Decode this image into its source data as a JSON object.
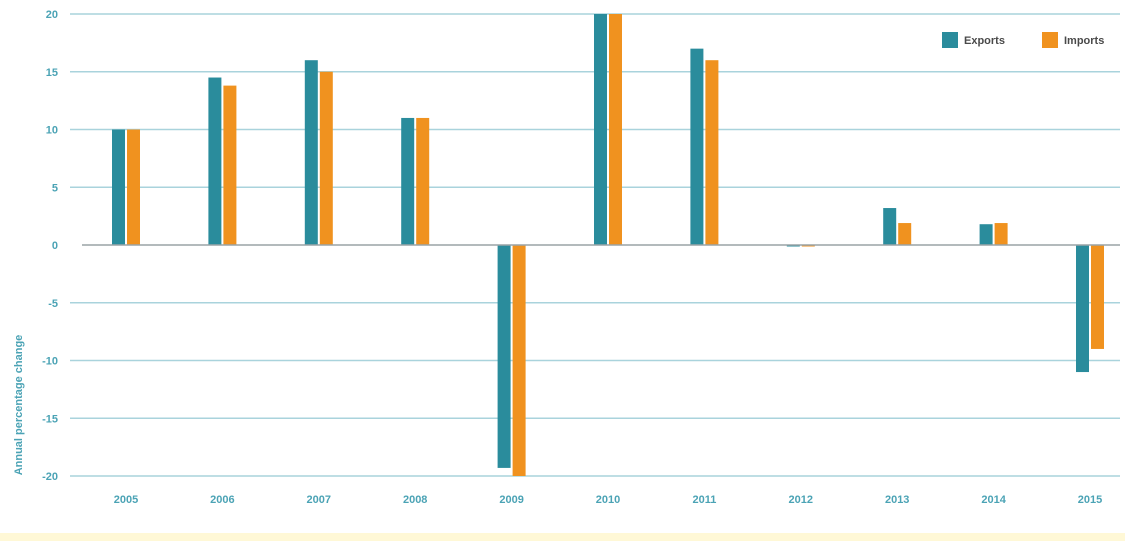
{
  "chart_data": {
    "type": "bar",
    "title": "",
    "xlabel": "",
    "ylabel": "Annual percentage change",
    "categories": [
      "2005",
      "2006",
      "2007",
      "2008",
      "2009",
      "2010",
      "2011",
      "2012",
      "2013",
      "2014",
      "2015"
    ],
    "series": [
      {
        "name": "Exports",
        "color": "#2a8c9c",
        "values": [
          10,
          14.5,
          16,
          11,
          -19.3,
          20,
          17,
          0,
          3.2,
          1.8,
          -11
        ]
      },
      {
        "name": "Imports",
        "color": "#f0921f",
        "values": [
          10,
          13.8,
          15,
          11,
          -20,
          20,
          16,
          0,
          1.9,
          1.9,
          -9
        ]
      }
    ],
    "yticks": [
      "20",
      "15",
      "10",
      "5",
      "0",
      "-5",
      "-10",
      "-15",
      "-20"
    ],
    "ylim": [
      -20,
      20
    ],
    "grid": true,
    "legend_position": "top-right"
  }
}
